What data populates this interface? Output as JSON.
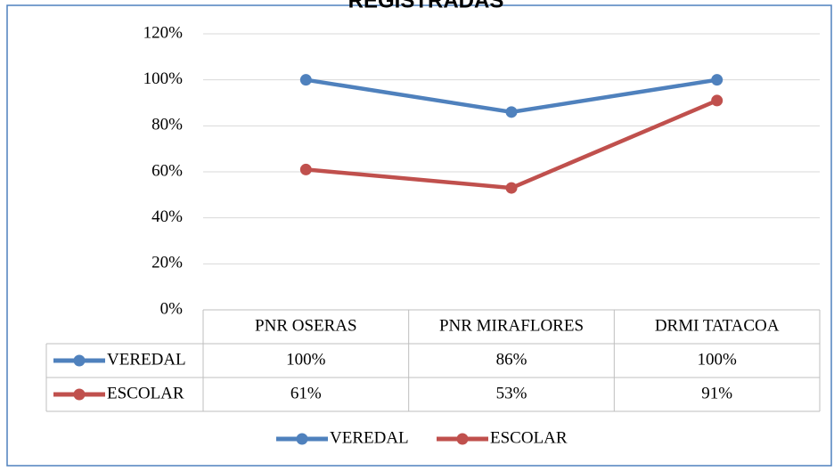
{
  "chart_data": {
    "type": "line",
    "title": "REGISTRADAS",
    "categories": [
      "PNR OSERAS",
      "PNR MIRAFLORES",
      "DRMI TATACOA"
    ],
    "series": [
      {
        "name": "VEREDAL",
        "color": "#4f81bd",
        "values": [
          100,
          86,
          100
        ],
        "value_labels": [
          "100%",
          "86%",
          "100%"
        ]
      },
      {
        "name": "ESCOLAR",
        "color": "#c0504d",
        "values": [
          61,
          53,
          91
        ],
        "value_labels": [
          "61%",
          "53%",
          "91%"
        ]
      }
    ],
    "ylim": [
      0,
      120
    ],
    "yticks": [
      {
        "value": 0,
        "label": "0%"
      },
      {
        "value": 20,
        "label": "20%"
      },
      {
        "value": 40,
        "label": "40%"
      },
      {
        "value": 60,
        "label": "60%"
      },
      {
        "value": 80,
        "label": "80%"
      },
      {
        "value": 100,
        "label": "100%"
      },
      {
        "value": 120,
        "label": "120%"
      }
    ],
    "grid": true,
    "legend": "bottom",
    "data_table": true
  }
}
